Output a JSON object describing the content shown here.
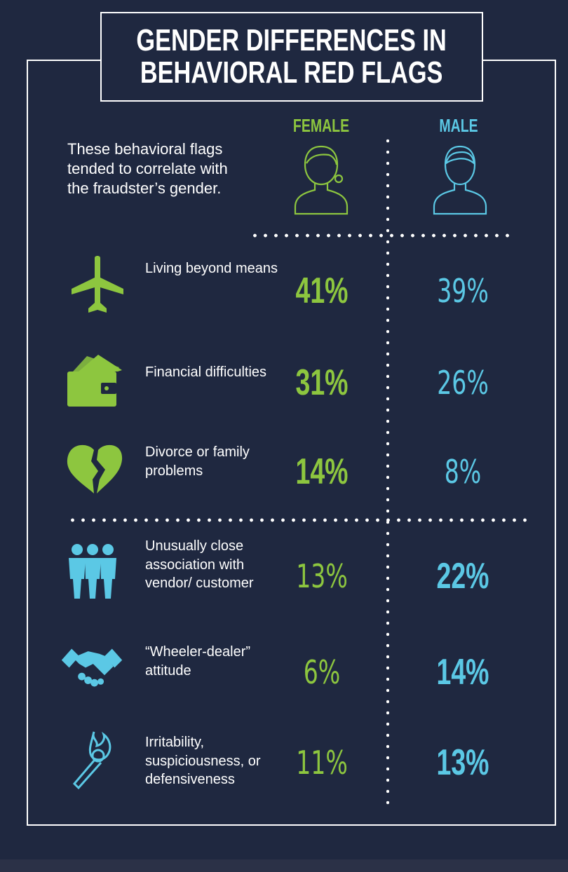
{
  "title": {
    "line1": "GENDER DIFFERENCES IN",
    "line2": "BEHAVIORAL RED FLAGS"
  },
  "intro": "These behavioral flags tended to correlate with the fraudster’s gender.",
  "colors": {
    "female": "#8dc63f",
    "male": "#5bc8e5",
    "background": "#1f2840"
  },
  "chart_data": {
    "type": "table",
    "title": "GENDER DIFFERENCES IN BEHAVIORAL RED FLAGS",
    "columns": [
      "FEMALE",
      "MALE"
    ],
    "rows": [
      {
        "label": "Living beyond means",
        "icon": "airplane-icon",
        "female": "41%",
        "male": "39%",
        "higher": "female"
      },
      {
        "label": "Financial difficulties",
        "icon": "wallet-icon",
        "female": "31%",
        "male": "26%",
        "higher": "female"
      },
      {
        "label": "Divorce or family problems",
        "icon": "broken-heart-icon",
        "female": "14%",
        "male": "8%",
        "higher": "female"
      },
      {
        "label": "Unusually close association with vendor/ customer",
        "icon": "people-group-icon",
        "female": "13%",
        "male": "22%",
        "higher": "male"
      },
      {
        "label": "“Wheeler-dealer” attitude",
        "icon": "handshake-icon",
        "female": "6%",
        "male": "14%",
        "higher": "male"
      },
      {
        "label": "Irritability, suspiciousness, or defensiveness",
        "icon": "burning-match-icon",
        "female": "11%",
        "male": "13%",
        "higher": "male"
      }
    ]
  }
}
